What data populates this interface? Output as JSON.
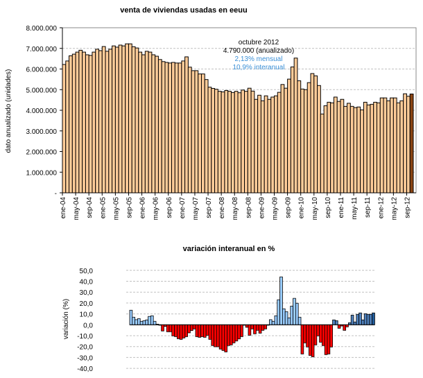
{
  "chart_data": [
    {
      "type": "bar",
      "title": "venta de viviendas usadas en eeuu",
      "xlabel": "",
      "ylabel": "dato anualizado (unidades)",
      "ylim": [
        0,
        8000000
      ],
      "yticks": [
        "-",
        "1.000.000",
        "2.000.000",
        "3.000.000",
        "4.000.000",
        "5.000.000",
        "6.000.000",
        "7.000.000",
        "8.000.000"
      ],
      "xtick_labels": [
        "ene-04",
        "may-04",
        "sep-04",
        "ene-05",
        "may-05",
        "sep-05",
        "ene-06",
        "may-06",
        "sep-06",
        "ene-07",
        "may-07",
        "sep-07",
        "ene-08",
        "may-08",
        "sep-08",
        "ene-09",
        "may-09",
        "sep-09",
        "ene-10",
        "may-10",
        "sep-10",
        "ene-11",
        "may-11",
        "sep-11",
        "ene-12",
        "may-12",
        "sep-12"
      ],
      "x_range": [
        "ene-04",
        "oct-12"
      ],
      "grid": true,
      "colors": {
        "bar": "#ffcc99",
        "last_bar": "#8b4513"
      },
      "annotation": {
        "line1": "octubre 2012",
        "line2": "4.790.000 (anualizado)",
        "line3": "2,13% mensual",
        "line4": "10,9% interanual",
        "accent": "#3a8fd6"
      },
      "values": [
        6220000,
        6390000,
        6640000,
        6720000,
        6820000,
        6910000,
        6820000,
        6690000,
        6660000,
        6820000,
        6960000,
        6890000,
        7090000,
        6860000,
        6960000,
        7120000,
        7060000,
        7160000,
        7120000,
        7220000,
        7220000,
        7080000,
        7020000,
        6820000,
        6690000,
        6860000,
        6820000,
        6690000,
        6620000,
        6460000,
        6360000,
        6320000,
        6290000,
        6320000,
        6290000,
        6290000,
        6390000,
        6590000,
        6090000,
        5920000,
        5920000,
        5760000,
        5760000,
        5490000,
        5120000,
        5060000,
        5020000,
        4920000,
        4890000,
        4960000,
        4920000,
        4860000,
        4920000,
        4850000,
        4980000,
        4920000,
        5070000,
        4930000,
        4530000,
        4730000,
        4460000,
        4700000,
        4530000,
        4640000,
        4700000,
        4870000,
        5250000,
        5070000,
        5510000,
        6100000,
        6530000,
        5430000,
        5030000,
        5000000,
        5340000,
        5780000,
        5670000,
        5200000,
        3820000,
        4220000,
        4390000,
        4360000,
        4640000,
        4430000,
        4530000,
        4190000,
        4340000,
        4190000,
        4130000,
        4160000,
        4020000,
        4390000,
        4260000,
        4290000,
        4390000,
        4360000,
        4600000,
        4600000,
        4460000,
        4600000,
        4600000,
        4360000,
        4460000,
        4800000,
        4680000,
        4790000
      ]
    },
    {
      "type": "bar",
      "title": "variación interanual en %",
      "xlabel": "",
      "ylabel": "variación (%)",
      "ylim": [
        -40,
        50
      ],
      "yticks": [
        "-40,0",
        "-30,0",
        "-20,0",
        "-10,0",
        "0,0",
        "10,0",
        "20,0",
        "30,0",
        "40,0",
        "50,0"
      ],
      "grid": true,
      "colors": {
        "positive": "#99ccff",
        "positive_recent": "#4f81bd",
        "last_bar": "#1f5a99",
        "negative": "#ff0000"
      },
      "values": [
        13.4,
        7.0,
        4.7,
        5.7,
        3.2,
        3.8,
        4.5,
        7.7,
        8.3,
        3.2,
        0.6,
        -0.4,
        -5.7,
        -1.5,
        -6.4,
        -6.4,
        -10.2,
        -10.9,
        -12.8,
        -13.4,
        -12.1,
        -10.9,
        -7.4,
        -5.3,
        -3.8,
        -10.9,
        -11.5,
        -10.9,
        -11.5,
        -9.6,
        -13.4,
        -19.1,
        -20.2,
        -20.2,
        -22.3,
        -23.6,
        -24.9,
        -19.1,
        -18.5,
        -16.6,
        -14.9,
        -13.0,
        -10.9,
        -0.4,
        -2.3,
        -9.6,
        -3.8,
        -8.3,
        -5.1,
        -7.7,
        -5.1,
        -3.8,
        -0.4,
        4.7,
        3.2,
        8.3,
        23.0,
        44.0,
        14.7,
        12.1,
        6.4,
        17.2,
        24.3,
        19.8,
        7.0,
        -26.8,
        -16.6,
        -20.4,
        -28.1,
        -29.4,
        -18.5,
        -10.2,
        -16.0,
        -19.1,
        -27.4,
        -26.8,
        -20.4,
        4.5,
        3.8,
        -3.2,
        -1.1,
        -5.1,
        -1.9,
        1.9,
        8.9,
        2.6,
        9.6,
        10.9,
        4.5,
        10.2,
        9.6,
        9.6,
        10.9
      ]
    }
  ]
}
